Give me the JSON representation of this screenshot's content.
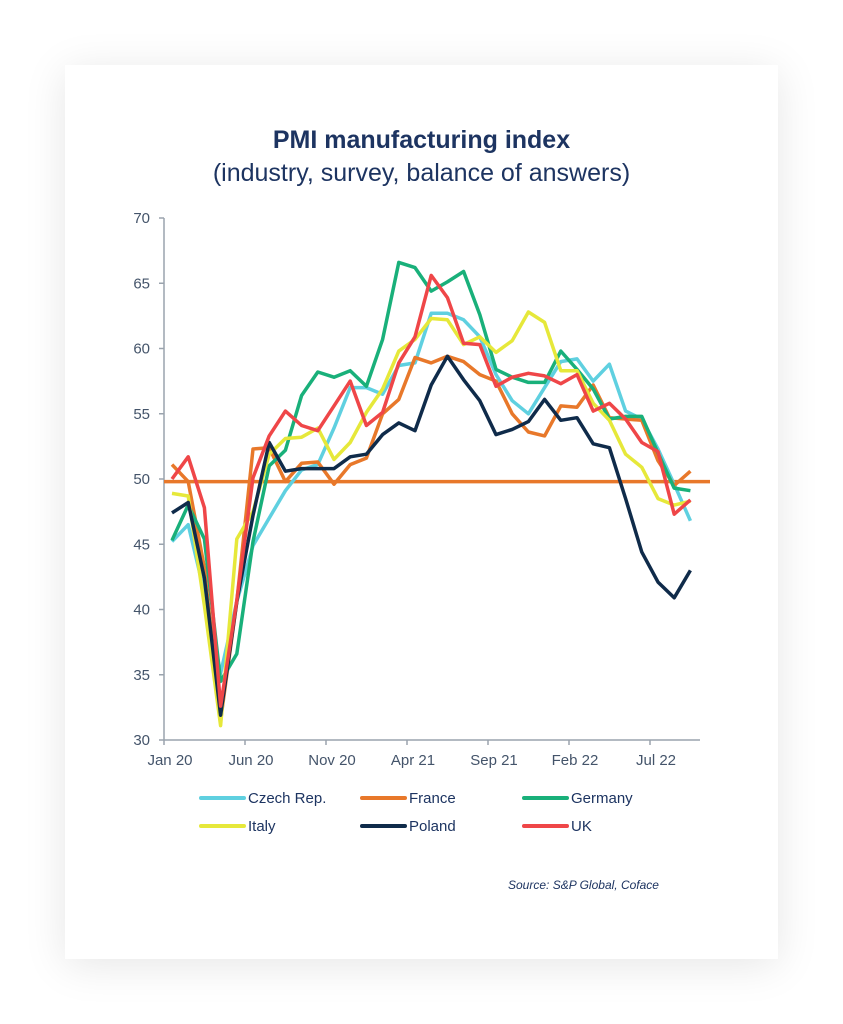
{
  "chart_data": {
    "type": "line",
    "title": "PMI manufacturing index",
    "subtitle": "(industry, survey, balance of answers)",
    "xlabel": "",
    "ylabel": "",
    "ylim": [
      30,
      70
    ],
    "yticks": [
      30,
      35,
      40,
      45,
      50,
      55,
      60,
      65,
      70
    ],
    "xtick_labels": [
      "Jan 20",
      "Jun 20",
      "Nov 20",
      "Apr 21",
      "Sep 21",
      "Feb 22",
      "Jul 22"
    ],
    "x_start": "Jan 20",
    "x_end": "Sep 22",
    "grid": false,
    "reference_line": {
      "value": 49.8,
      "color": "#e8782a"
    },
    "legend_position": "bottom",
    "series": [
      {
        "name": "Czech Rep.",
        "color": "#5fd0e0",
        "values": [
          45.2,
          46.5,
          41.3,
          35.1,
          40.6,
          44.9,
          47.0,
          49.1,
          50.7,
          51.1,
          53.9,
          57.0,
          57.0,
          56.5,
          58.7,
          58.9,
          62.7,
          62.7,
          62.2,
          60.9,
          58.0,
          56.0,
          55.0,
          57.0,
          59.0,
          59.2,
          57.5,
          58.8,
          55.2,
          54.6,
          52.3,
          49.6,
          46.8,
          46.8,
          44.7
        ]
      },
      {
        "name": "France",
        "color": "#e8782a",
        "values": [
          51.1,
          49.8,
          43.2,
          31.5,
          40.6,
          52.3,
          52.4,
          49.8,
          51.2,
          51.3,
          49.6,
          51.1,
          51.6,
          55.0,
          56.1,
          59.3,
          58.9,
          59.4,
          59.0,
          58.0,
          57.5,
          55.0,
          53.6,
          53.3,
          55.6,
          55.5,
          57.2,
          54.7,
          54.6,
          54.5,
          51.4,
          49.5,
          50.6,
          47.7,
          48.0
        ]
      },
      {
        "name": "Germany",
        "color": "#19b07a",
        "values": [
          45.3,
          48.0,
          45.4,
          34.5,
          36.6,
          45.2,
          51.0,
          52.2,
          56.4,
          58.2,
          57.8,
          58.3,
          57.1,
          60.7,
          66.6,
          66.2,
          64.4,
          65.1,
          65.9,
          62.6,
          58.4,
          57.8,
          57.4,
          57.4,
          59.8,
          58.4,
          56.9,
          54.6,
          54.8,
          54.8,
          52.0,
          49.3,
          49.1,
          48.3,
          47.8
        ]
      },
      {
        "name": "Italy",
        "color": "#e6e83a",
        "values": [
          48.9,
          48.7,
          40.3,
          31.1,
          45.4,
          47.5,
          51.9,
          53.1,
          53.2,
          53.9,
          51.5,
          52.8,
          55.1,
          56.9,
          59.8,
          60.7,
          62.3,
          62.2,
          60.3,
          60.9,
          59.7,
          60.6,
          62.8,
          62.0,
          58.3,
          58.3,
          55.8,
          54.5,
          51.9,
          50.9,
          48.5,
          48.0,
          48.3,
          48.3,
          48.5
        ]
      },
      {
        "name": "Poland",
        "color": "#0f2b4a",
        "values": [
          47.4,
          48.2,
          42.4,
          31.9,
          40.6,
          47.2,
          52.8,
          50.6,
          50.8,
          50.8,
          50.8,
          51.7,
          51.9,
          53.4,
          54.3,
          53.7,
          57.2,
          59.4,
          57.6,
          56.0,
          53.4,
          53.8,
          54.4,
          56.1,
          54.5,
          54.7,
          52.7,
          52.4,
          48.5,
          44.4,
          42.1,
          40.9,
          43.0
        ]
      },
      {
        "name": "UK",
        "color": "#ef4648",
        "values": [
          50.0,
          51.7,
          47.8,
          32.6,
          40.7,
          50.1,
          53.3,
          55.2,
          54.1,
          53.7,
          55.6,
          57.5,
          54.1,
          55.1,
          58.9,
          60.9,
          65.6,
          63.9,
          60.4,
          60.3,
          57.1,
          57.8,
          58.1,
          57.9,
          57.3,
          58.0,
          55.2,
          55.8,
          54.6,
          52.8,
          52.1,
          47.3,
          48.4
        ]
      }
    ],
    "source": "Source: S&P Global, Coface"
  }
}
